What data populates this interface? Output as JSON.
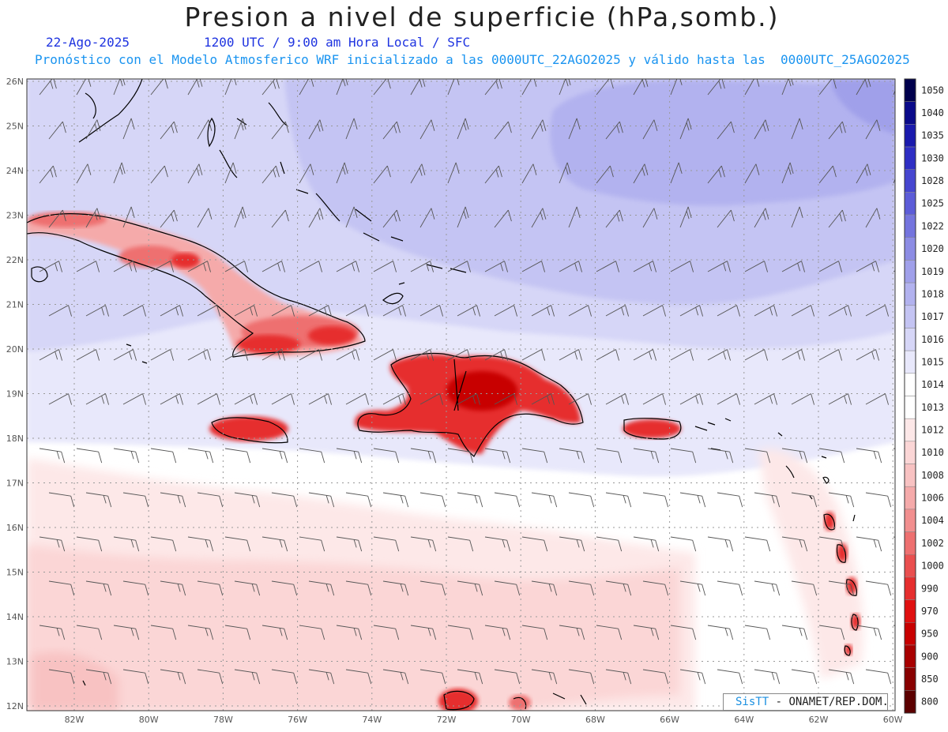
{
  "header": {
    "title": "Presion a nivel de superficie (hPa,somb.)",
    "date": "22-Ago-2025",
    "valid_time": "1200 UTC / 9:00 am Hora Local / SFC",
    "forecast_note": "Pronóstico con el Modelo Atmosferico WRF inicializado a las 0000UTC_22AGO2025 y válido hasta las  0000UTC_25AGO2025"
  },
  "map": {
    "lon_labels": [
      "82W",
      "80W",
      "78W",
      "76W",
      "74W",
      "72W",
      "70W",
      "68W",
      "66W",
      "64W",
      "62W",
      "60W"
    ],
    "lat_labels": [
      "26N",
      "25N",
      "24N",
      "23N",
      "22N",
      "21N",
      "20N",
      "19N",
      "18N",
      "17N",
      "16N",
      "15N",
      "14N",
      "13N",
      "12N"
    ]
  },
  "colorbar": {
    "labels": [
      "1050",
      "1040",
      "1035",
      "1030",
      "1028",
      "1025",
      "1022",
      "1020",
      "1019",
      "1018",
      "1017",
      "1016",
      "1015",
      "1014",
      "1013",
      "1012",
      "1010",
      "1008",
      "1006",
      "1004",
      "1002",
      "1000",
      "990",
      "970",
      "950",
      "900",
      "850",
      "800"
    ],
    "colors": [
      "#00004d",
      "#0a0a8a",
      "#1a1aad",
      "#2e2ec4",
      "#4646d0",
      "#5c5cd8",
      "#7474de",
      "#8c8ce4",
      "#a0a0ea",
      "#b2b2ef",
      "#c4c4f3",
      "#d6d6f7",
      "#e8e8fb",
      "#ffffff",
      "#ffffff",
      "#fde8e8",
      "#fbd6d6",
      "#f8c2c2",
      "#f5aaaa",
      "#f28f8f",
      "#ee7070",
      "#ea4f4f",
      "#e62e2e",
      "#e01010",
      "#c80000",
      "#a80000",
      "#880000",
      "#5c0000"
    ]
  },
  "footer": {
    "logo": "SisTT",
    "agency": "- ONAMET/REP.DOM."
  }
}
